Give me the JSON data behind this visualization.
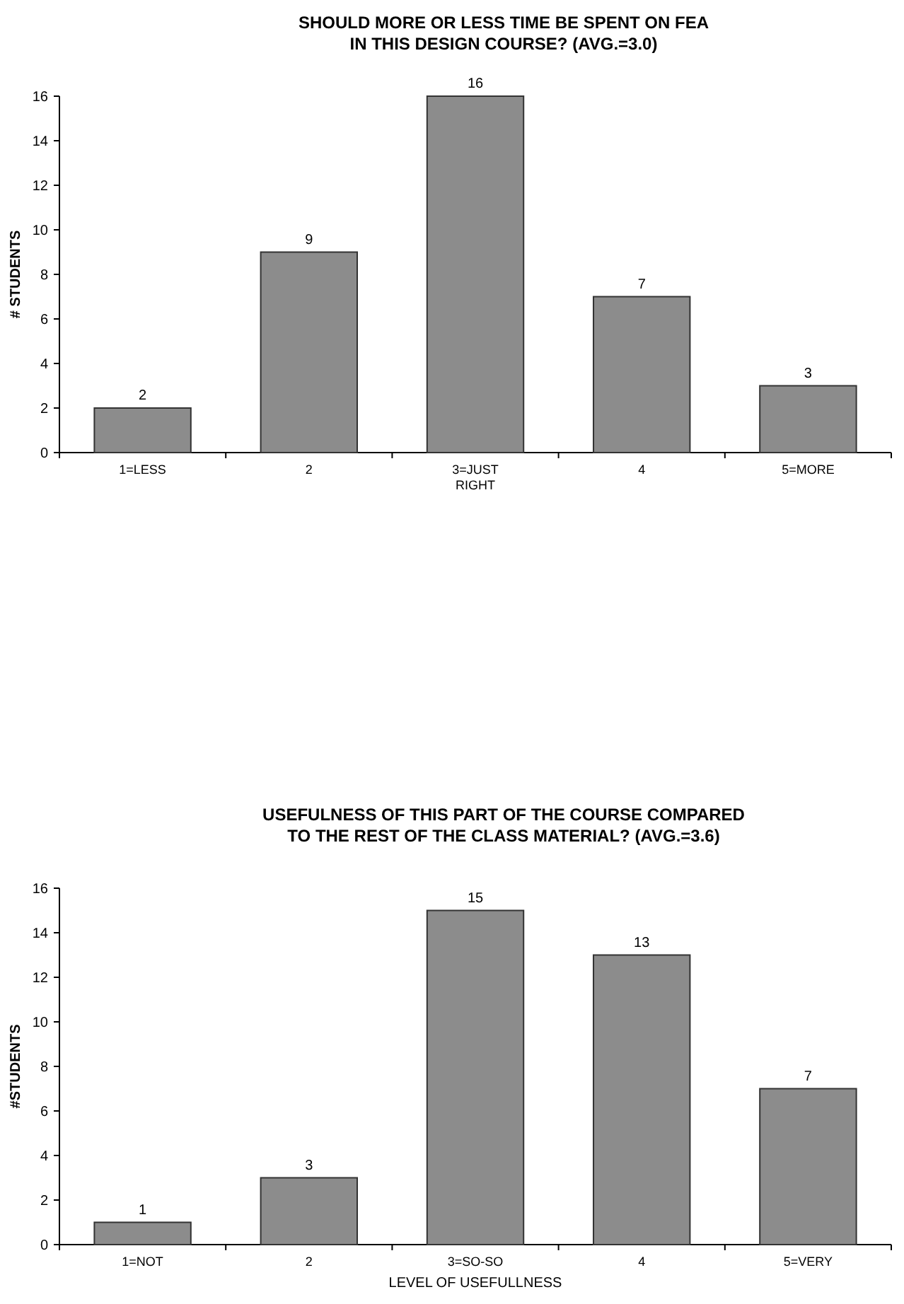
{
  "chart_data": [
    {
      "type": "bar",
      "title": "SHOULD MORE OR LESS TIME BE SPENT ON FEA\nIN THIS DESIGN COURSE? (AVG.=3.0)",
      "ylabel": "# STUDENTS",
      "categories": [
        "1=LESS",
        "2",
        "3=JUST RIGHT",
        "4",
        "5=MORE"
      ],
      "values": [
        2,
        9,
        16,
        7,
        3
      ],
      "color": "#8c8c8c",
      "ylim": [
        0,
        16
      ],
      "yticks": [
        0,
        2,
        4,
        6,
        8,
        10,
        12,
        14,
        16
      ],
      "data_labels": true
    },
    {
      "type": "bar",
      "title": "USEFULNESS OF THIS PART OF THE COURSE COMPARED\nTO THE REST OF THE CLASS MATERIAL? (AVG.=3.6)",
      "ylabel": "#STUDENTS",
      "xlabel": "LEVEL OF USEFULLNESS",
      "categories": [
        "1=NOT",
        "2",
        "3=SO-SO",
        "4",
        "5=VERY"
      ],
      "values": [
        1,
        3,
        15,
        13,
        7
      ],
      "color": "#8c8c8c",
      "ylim": [
        0,
        16
      ],
      "yticks": [
        0,
        2,
        4,
        6,
        8,
        10,
        12,
        14,
        16
      ],
      "data_labels": true
    }
  ]
}
